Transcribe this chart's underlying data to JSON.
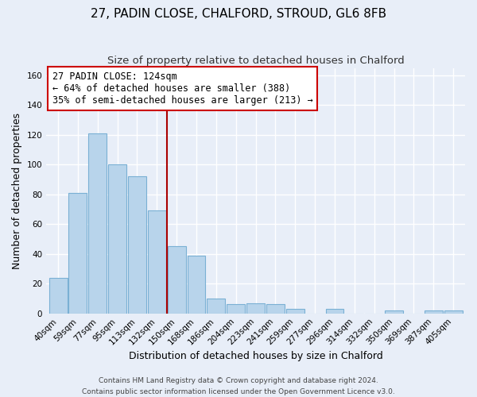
{
  "title": "27, PADIN CLOSE, CHALFORD, STROUD, GL6 8FB",
  "subtitle": "Size of property relative to detached houses in Chalford",
  "xlabel": "Distribution of detached houses by size in Chalford",
  "ylabel": "Number of detached properties",
  "bar_labels": [
    "40sqm",
    "59sqm",
    "77sqm",
    "95sqm",
    "113sqm",
    "132sqm",
    "150sqm",
    "168sqm",
    "186sqm",
    "204sqm",
    "223sqm",
    "241sqm",
    "259sqm",
    "277sqm",
    "296sqm",
    "314sqm",
    "332sqm",
    "350sqm",
    "369sqm",
    "387sqm",
    "405sqm"
  ],
  "bar_values": [
    24,
    81,
    121,
    100,
    92,
    69,
    45,
    39,
    10,
    6,
    7,
    6,
    3,
    0,
    3,
    0,
    0,
    2,
    0,
    2,
    2
  ],
  "bar_color": "#b8d4eb",
  "bar_edge_color": "#7ab0d4",
  "vline_x": 5.5,
  "vline_color": "#aa0000",
  "annotation_text": "27 PADIN CLOSE: 124sqm\n← 64% of detached houses are smaller (388)\n35% of semi-detached houses are larger (213) →",
  "annotation_box_edgecolor": "#cc0000",
  "annotation_box_facecolor": "#ffffff",
  "ylim": [
    0,
    165
  ],
  "yticks": [
    0,
    20,
    40,
    60,
    80,
    100,
    120,
    140,
    160
  ],
  "footer_line1": "Contains HM Land Registry data © Crown copyright and database right 2024.",
  "footer_line2": "Contains public sector information licensed under the Open Government Licence v3.0.",
  "background_color": "#e8eef8",
  "grid_color": "#ffffff",
  "title_fontsize": 11,
  "subtitle_fontsize": 9.5,
  "axis_label_fontsize": 9,
  "tick_fontsize": 7.5,
  "footer_fontsize": 6.5,
  "annotation_fontsize": 8.5
}
